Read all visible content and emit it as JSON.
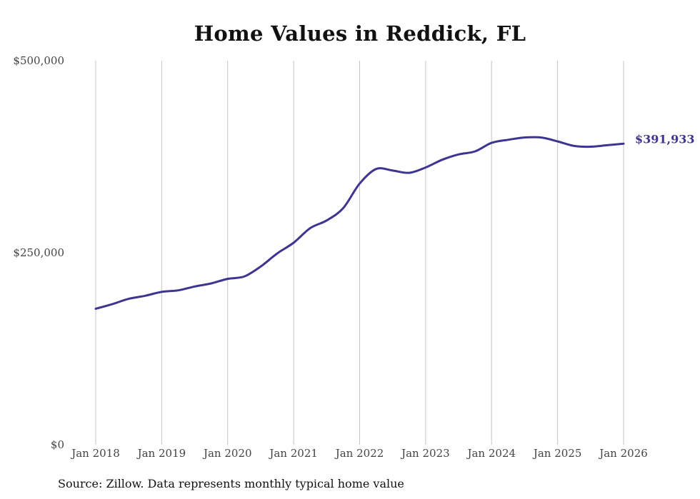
{
  "chart_data": {
    "type": "line",
    "title": "Home Values in Reddick, FL",
    "xlabel": "",
    "ylabel": "",
    "ylim": [
      0,
      500000
    ],
    "xlim": [
      2018,
      2026
    ],
    "y_ticks": [
      {
        "value": 0,
        "label": "$0"
      },
      {
        "value": 250000,
        "label": "$250,000"
      },
      {
        "value": 500000,
        "label": "$500,000"
      }
    ],
    "x_ticks": [
      {
        "value": 2018,
        "label": "Jan 2018"
      },
      {
        "value": 2019,
        "label": "Jan 2019"
      },
      {
        "value": 2020,
        "label": "Jan 2020"
      },
      {
        "value": 2021,
        "label": "Jan 2021"
      },
      {
        "value": 2022,
        "label": "Jan 2022"
      },
      {
        "value": 2023,
        "label": "Jan 2023"
      },
      {
        "value": 2024,
        "label": "Jan 2024"
      },
      {
        "value": 2025,
        "label": "Jan 2025"
      },
      {
        "value": 2026,
        "label": "Jan 2026"
      }
    ],
    "grid": "vertical",
    "series": [
      {
        "name": "Typical home value",
        "color": "#3d3590",
        "x": [
          2018,
          2018.25,
          2018.5,
          2018.75,
          2019,
          2019.25,
          2019.5,
          2019.75,
          2020,
          2020.25,
          2020.5,
          2020.75,
          2021,
          2021.25,
          2021.5,
          2021.75,
          2022,
          2022.25,
          2022.5,
          2022.75,
          2023,
          2023.25,
          2023.5,
          2023.75,
          2024,
          2024.25,
          2024.5,
          2024.75,
          2025,
          2025.25,
          2025.5,
          2025.75,
          2026
        ],
        "values": [
          177000,
          183000,
          190000,
          194000,
          199000,
          201000,
          206000,
          210000,
          216000,
          219000,
          232000,
          249000,
          263000,
          282000,
          292000,
          308000,
          340000,
          359000,
          357000,
          354000,
          361000,
          371000,
          378000,
          382000,
          393000,
          397000,
          400000,
          400000,
          395000,
          389000,
          388000,
          390000,
          391933
        ]
      }
    ],
    "end_label": "$391,933",
    "source_note": "Source: Zillow. Data represents monthly typical home value"
  }
}
